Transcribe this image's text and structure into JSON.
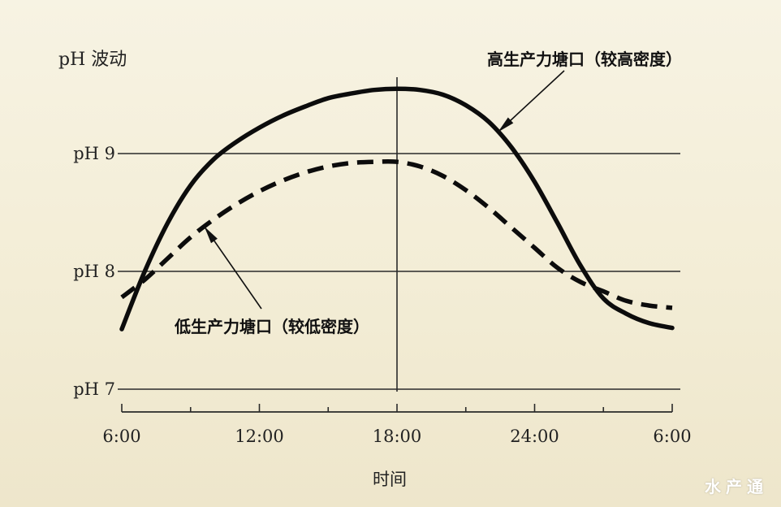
{
  "chart_data": {
    "type": "line",
    "ylabel": "pH 波动",
    "xlabel": "时间",
    "ylim": [
      6.9,
      9.6
    ],
    "y_ticks": [
      {
        "value": 9,
        "label": "pH 9"
      },
      {
        "value": 8,
        "label": "pH 8"
      },
      {
        "value": 7,
        "label": "pH 7"
      }
    ],
    "x_ticks": [
      {
        "value": 6,
        "label": "6:00"
      },
      {
        "value": 12,
        "label": "12:00"
      },
      {
        "value": 18,
        "label": "18:00"
      },
      {
        "value": 24,
        "label": "24:00"
      },
      {
        "value": 30,
        "label": "6:00"
      }
    ],
    "grid": true,
    "series": [
      {
        "name": "高生产力塘口（较高密度）",
        "style": "solid",
        "points": [
          [
            6,
            7.51
          ],
          [
            7,
            8.0
          ],
          [
            8,
            8.41
          ],
          [
            9,
            8.73
          ],
          [
            10,
            8.95
          ],
          [
            11,
            9.1
          ],
          [
            12,
            9.22
          ],
          [
            13,
            9.32
          ],
          [
            14,
            9.4
          ],
          [
            15,
            9.47
          ],
          [
            16,
            9.51
          ],
          [
            17,
            9.54
          ],
          [
            18,
            9.55
          ],
          [
            19,
            9.54
          ],
          [
            20,
            9.5
          ],
          [
            21,
            9.41
          ],
          [
            22,
            9.27
          ],
          [
            23,
            9.05
          ],
          [
            24,
            8.76
          ],
          [
            25,
            8.41
          ],
          [
            26,
            8.05
          ],
          [
            27,
            7.77
          ],
          [
            28,
            7.64
          ],
          [
            29,
            7.56
          ],
          [
            30,
            7.52
          ]
        ]
      },
      {
        "name": "低生产力塘口（较低密度）",
        "style": "dashed",
        "points": [
          [
            6,
            7.78
          ],
          [
            7,
            7.93
          ],
          [
            8,
            8.11
          ],
          [
            9,
            8.29
          ],
          [
            10,
            8.44
          ],
          [
            11,
            8.57
          ],
          [
            12,
            8.68
          ],
          [
            13,
            8.77
          ],
          [
            14,
            8.84
          ],
          [
            15,
            8.89
          ],
          [
            16,
            8.92
          ],
          [
            17,
            8.93
          ],
          [
            18,
            8.93
          ],
          [
            19,
            8.89
          ],
          [
            20,
            8.81
          ],
          [
            21,
            8.69
          ],
          [
            22,
            8.54
          ],
          [
            23,
            8.37
          ],
          [
            24,
            8.2
          ],
          [
            25,
            8.03
          ],
          [
            26,
            7.91
          ],
          [
            27,
            7.83
          ],
          [
            28,
            7.75
          ],
          [
            29,
            7.71
          ],
          [
            30,
            7.69
          ]
        ]
      }
    ],
    "annotations": [
      {
        "text": "高生产力塘口（较高密度）",
        "series": 0,
        "x": 22.4
      },
      {
        "text": "低生产力塘口（较低密度）",
        "series": 1,
        "x": 9.6
      }
    ]
  },
  "watermark": "水产通"
}
